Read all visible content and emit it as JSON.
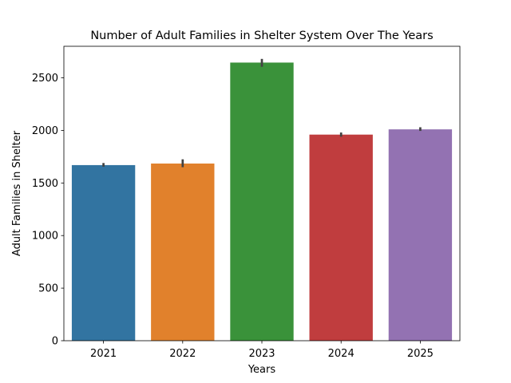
{
  "chart_data": {
    "type": "bar",
    "title": "Number of Adult Families in Shelter System Over The Years",
    "xlabel": "Years",
    "ylabel": "Adult Families in Shelter",
    "categories": [
      "2021",
      "2022",
      "2023",
      "2024",
      "2025"
    ],
    "values": [
      1670,
      1685,
      2645,
      1960,
      2010
    ],
    "error_ranges": [
      [
        1655,
        1690
      ],
      [
        1650,
        1725
      ],
      [
        2605,
        2680
      ],
      [
        1940,
        1980
      ],
      [
        1995,
        2030
      ]
    ],
    "colors": [
      "#3274a1",
      "#e1812c",
      "#3a923a",
      "#c03d3e",
      "#9372b2"
    ],
    "ylim": [
      0,
      2800
    ],
    "yticks": [
      0,
      500,
      1000,
      1500,
      2000,
      2500
    ],
    "ytick_labels": [
      "0",
      "500",
      "1000",
      "1500",
      "2000",
      "2500"
    ],
    "grid": false,
    "legend": "none"
  }
}
